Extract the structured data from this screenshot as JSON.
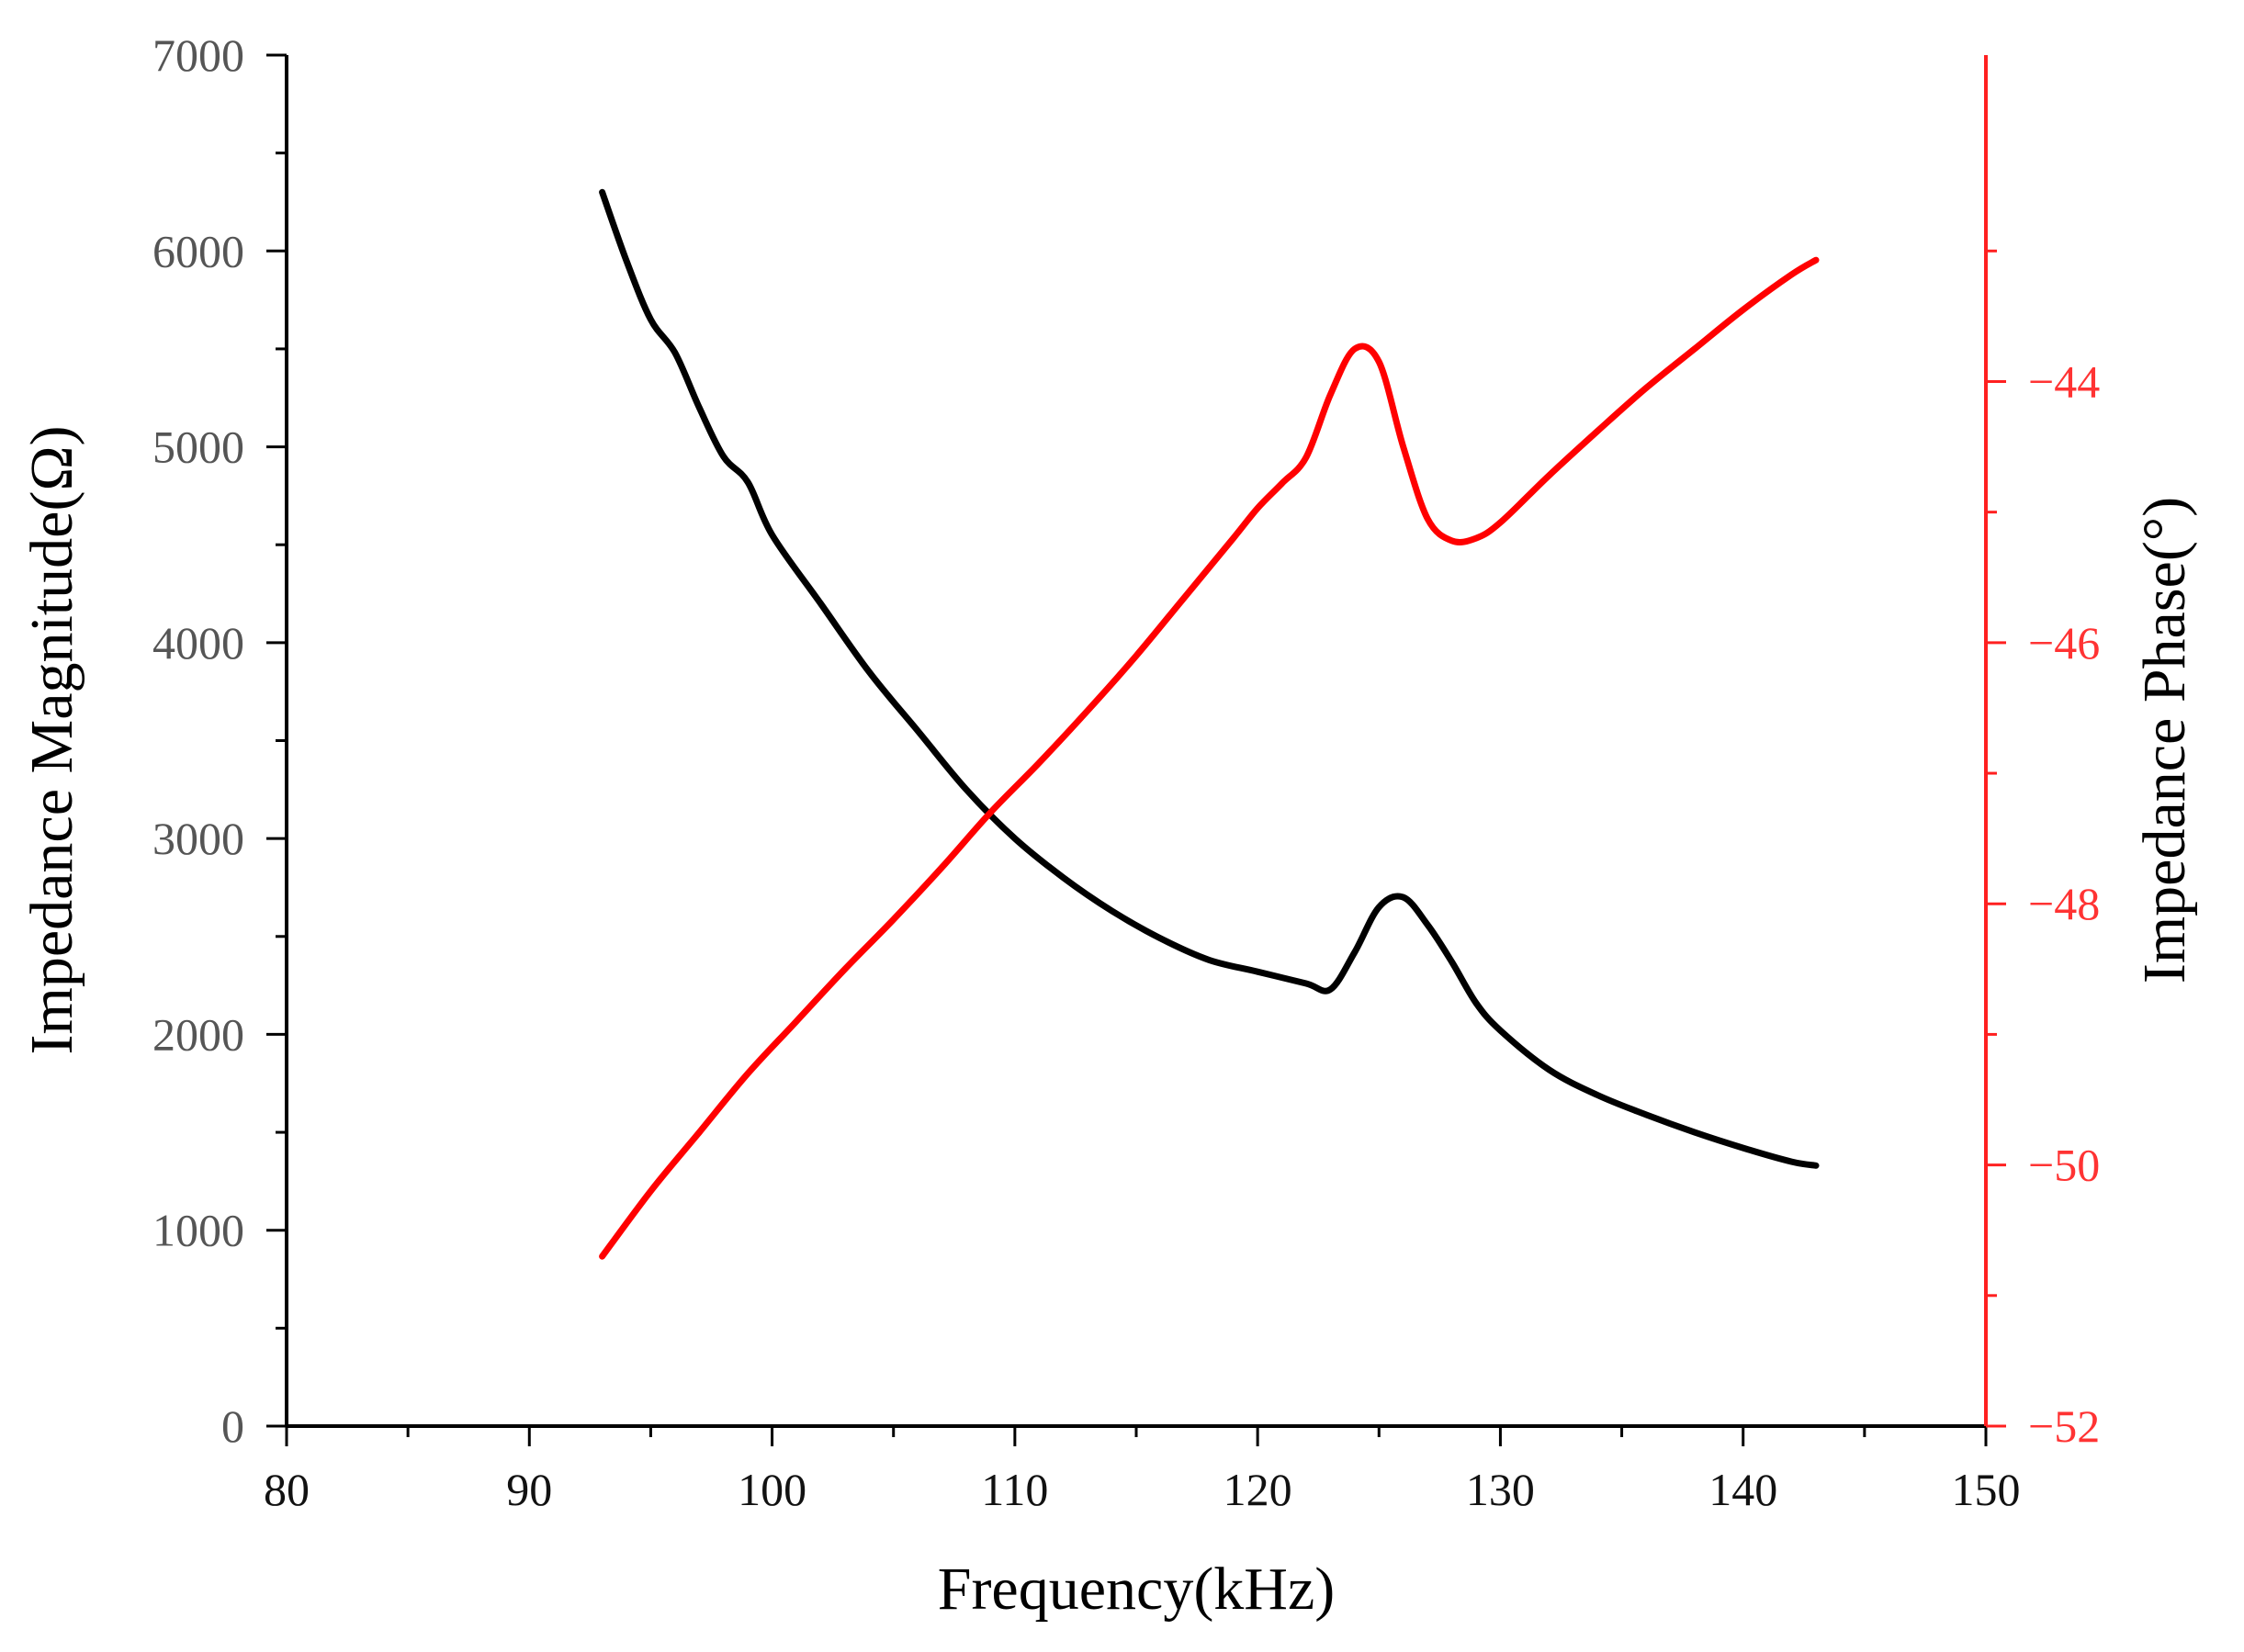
{
  "colors": {
    "magnitude": "#000000",
    "phase": "#ff0000",
    "left_axis": "#000000",
    "right_axis": "#ff2020",
    "left_tick_text": "#555555",
    "right_tick_text": "#ff3333"
  },
  "chart_data": {
    "type": "line",
    "title": "",
    "xlabel": "Frequency(kHz)",
    "ylabel_left": "Impedance Magnitude(Ω)",
    "ylabel_right": "Impedance Phase(°)",
    "xlim": [
      80,
      150
    ],
    "ylim_left": [
      0,
      7000
    ],
    "ylim_right": [
      -52,
      -41.5
    ],
    "x_ticks": [
      80,
      90,
      100,
      110,
      120,
      130,
      140,
      150
    ],
    "x_tick_labels": [
      "80",
      "90",
      "100",
      "110",
      "120",
      "130",
      "140",
      "150"
    ],
    "y_left_ticks": [
      0,
      1000,
      2000,
      3000,
      4000,
      5000,
      6000,
      7000
    ],
    "y_left_tick_labels": [
      "0",
      "1000",
      "2000",
      "3000",
      "4000",
      "5000",
      "6000",
      "7000"
    ],
    "y_right_ticks": [
      -52,
      -50,
      -48,
      -46,
      -44
    ],
    "y_right_tick_labels": [
      "−52",
      "−50",
      "−48",
      "−46",
      "−44"
    ],
    "grid": false,
    "series": [
      {
        "name": "Impedance Magnitude",
        "axis": "left",
        "x": [
          93,
          94,
          95,
          96,
          97,
          98,
          99,
          100,
          102,
          104,
          106,
          108,
          110,
          112,
          114,
          116,
          118,
          120,
          122,
          123,
          124,
          125,
          126,
          127,
          128,
          129,
          130,
          132,
          134,
          136,
          138,
          140,
          142,
          143
        ],
        "values": [
          6300,
          5950,
          5650,
          5480,
          5200,
          4950,
          4820,
          4550,
          4200,
          3850,
          3550,
          3250,
          3000,
          2800,
          2630,
          2490,
          2380,
          2320,
          2260,
          2230,
          2420,
          2650,
          2700,
          2560,
          2370,
          2160,
          2020,
          1820,
          1690,
          1590,
          1500,
          1420,
          1350,
          1330
        ]
      },
      {
        "name": "Impedance Phase",
        "axis": "right",
        "x": [
          93,
          95,
          97,
          99,
          101,
          103,
          105,
          107,
          109,
          111,
          113,
          115,
          117,
          119,
          120,
          121,
          122,
          123,
          124,
          125,
          126,
          127,
          128,
          129,
          130,
          132,
          134,
          136,
          138,
          140,
          142,
          143
        ],
        "values": [
          -50.7,
          -50.2,
          -49.75,
          -49.3,
          -48.9,
          -48.5,
          -48.12,
          -47.72,
          -47.3,
          -46.92,
          -46.52,
          -46.1,
          -45.65,
          -45.2,
          -44.97,
          -44.78,
          -44.58,
          -44.1,
          -43.75,
          -43.85,
          -44.5,
          -45.05,
          -45.22,
          -45.2,
          -45.08,
          -44.72,
          -44.38,
          -44.05,
          -43.75,
          -43.45,
          -43.18,
          -43.07
        ]
      }
    ]
  }
}
